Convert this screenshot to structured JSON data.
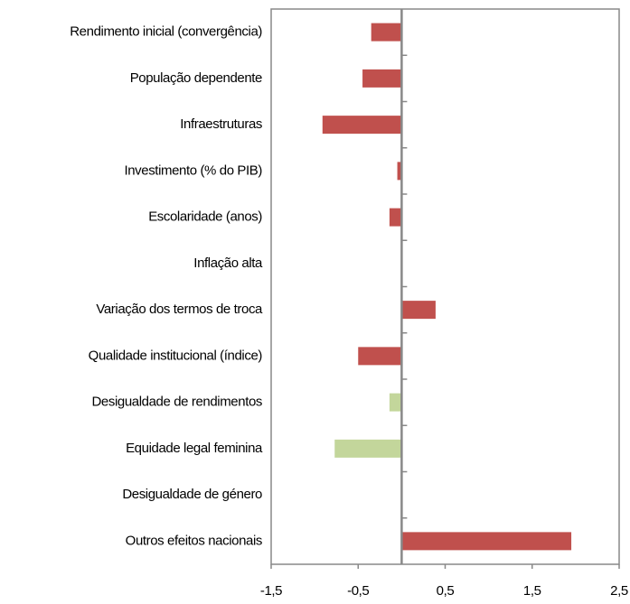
{
  "chart_data": {
    "type": "barh",
    "categories": [
      "Rendimento inicial (convergência)",
      "População dependente",
      "Infraestruturas",
      "Investimento (% do PIB)",
      "Escolaridade (anos)",
      "Inflação alta",
      "Variação dos termos de troca",
      "Qualidade institucional (índice)",
      "Desigualdade de rendimentos",
      "Equidade legal feminina",
      "Desigualdade de género",
      "Outros efeitos nacionais"
    ],
    "values": [
      -0.35,
      -0.45,
      -0.91,
      -0.05,
      -0.14,
      null,
      0.39,
      -0.5,
      -0.14,
      -0.77,
      null,
      1.95
    ],
    "colors": [
      "#c0504d",
      "#c0504d",
      "#c0504d",
      "#c0504d",
      "#c0504d",
      "#c0504d",
      "#c0504d",
      "#c0504d",
      "#c3d69b",
      "#c3d69b",
      "#c3d69b",
      "#c0504d"
    ],
    "xlim": [
      -1.5,
      2.5
    ],
    "xticks": [
      {
        "value": -1.5,
        "label": "-1,5"
      },
      {
        "value": -0.5,
        "label": "-0,5"
      },
      {
        "value": 0.5,
        "label": "0,5"
      },
      {
        "value": 1.5,
        "label": "1,5"
      },
      {
        "value": 2.5,
        "label": "2,5"
      }
    ]
  }
}
